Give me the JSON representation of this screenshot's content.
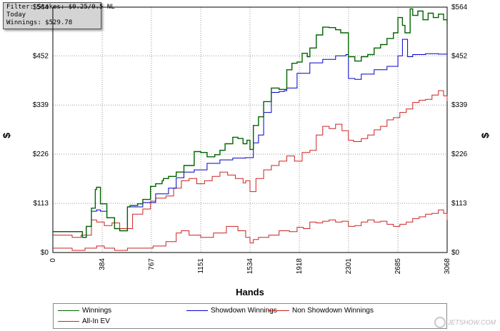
{
  "filter": {
    "line1": "Filter: Stakes: $0.25/0.5 NL",
    "line2": "Today",
    "line3": "Winnings: $529.78"
  },
  "chart_data": {
    "type": "line",
    "xlabel": "Hands",
    "ylabel": "$",
    "ylabel_right": "$",
    "xlim": [
      0,
      3068
    ],
    "ylim": [
      0,
      564
    ],
    "x_ticks": [
      0,
      384,
      767,
      1151,
      1534,
      1918,
      2301,
      2685,
      3068
    ],
    "y_ticks": [
      "$0",
      "$113",
      "$226",
      "$339",
      "$452",
      "$564"
    ],
    "y_tick_values": [
      0,
      113,
      226,
      339,
      452,
      564
    ],
    "grid": true,
    "legend_position": "bottom",
    "series": [
      {
        "name": "Winnings",
        "color": "#006400",
        "x": [
          0,
          200,
          230,
          260,
          300,
          330,
          340,
          370,
          420,
          480,
          520,
          580,
          600,
          660,
          700,
          760,
          800,
          850,
          860,
          900,
          960,
          1020,
          1100,
          1150,
          1200,
          1260,
          1300,
          1340,
          1400,
          1440,
          1480,
          1510,
          1534,
          1560,
          1600,
          1640,
          1700,
          1760,
          1800,
          1820,
          1860,
          1900,
          1940,
          1980,
          2000,
          2050,
          2100,
          2150,
          2200,
          2240,
          2280,
          2300,
          2350,
          2400,
          2450,
          2500,
          2550,
          2600,
          2650,
          2685,
          2720,
          2740,
          2780,
          2800,
          2840,
          2880,
          2920,
          2960,
          3000,
          3040,
          3068
        ],
        "y": [
          48,
          48,
          35,
          60,
          102,
          145,
          150,
          112,
          80,
          55,
          50,
          105,
          108,
          112,
          122,
          152,
          158,
          165,
          170,
          175,
          185,
          200,
          232,
          230,
          220,
          225,
          235,
          250,
          265,
          262,
          250,
          258,
          237,
          292,
          312,
          347,
          378,
          375,
          375,
          420,
          435,
          438,
          458,
          450,
          470,
          500,
          518,
          517,
          512,
          505,
          505,
          450,
          440,
          450,
          455,
          470,
          478,
          492,
          505,
          540,
          522,
          505,
          560,
          545,
          555,
          535,
          550,
          540,
          548,
          535,
          525
        ]
      },
      {
        "name": "Showdown Winnings",
        "color": "#0000cc",
        "x": [
          0,
          200,
          230,
          260,
          300,
          340,
          370,
          420,
          480,
          520,
          580,
          700,
          800,
          900,
          960,
          1020,
          1100,
          1200,
          1300,
          1400,
          1500,
          1534,
          1560,
          1600,
          1640,
          1700,
          1760,
          1800,
          1820,
          1900,
          2000,
          2100,
          2200,
          2280,
          2300,
          2350,
          2400,
          2500,
          2600,
          2685,
          2720,
          2760,
          2800,
          2850,
          2900,
          2950,
          3000,
          3068
        ],
        "y": [
          48,
          48,
          35,
          60,
          95,
          98,
          95,
          80,
          55,
          50,
          105,
          115,
          135,
          148,
          172,
          185,
          190,
          205,
          213,
          217,
          218,
          218,
          252,
          270,
          322,
          368,
          370,
          372,
          378,
          412,
          436,
          444,
          452,
          455,
          400,
          398,
          410,
          420,
          428,
          452,
          490,
          450,
          455,
          455,
          457,
          457,
          456,
          456
        ]
      },
      {
        "name": "Non Showdown Winnings",
        "color": "#cc2222",
        "x": [
          0,
          150,
          250,
          340,
          400,
          480,
          580,
          680,
          780,
          880,
          960,
          1000,
          1060,
          1150,
          1250,
          1350,
          1440,
          1500,
          1534,
          1560,
          1600,
          1680,
          1760,
          1840,
          1900,
          1950,
          2000,
          2050,
          2100,
          2150,
          2200,
          2250,
          2300,
          2350,
          2400,
          2450,
          2500,
          2550,
          2600,
          2650,
          2700,
          2750,
          2800,
          2850,
          2900,
          2950,
          3000,
          3040,
          3068
        ],
        "y": [
          10,
          5,
          10,
          15,
          10,
          5,
          10,
          10,
          15,
          25,
          45,
          50,
          40,
          35,
          45,
          60,
          50,
          35,
          22,
          30,
          35,
          40,
          50,
          48,
          58,
          55,
          70,
          68,
          72,
          75,
          70,
          72,
          60,
          62,
          70,
          75,
          70,
          72,
          65,
          60,
          65,
          70,
          78,
          82,
          88,
          90,
          98,
          90,
          75
        ]
      },
      {
        "name": "All-In EV",
        "color": "#cc2222",
        "x": [
          0,
          150,
          220,
          300,
          340,
          400,
          460,
          520,
          560,
          620,
          700,
          760,
          800,
          880,
          940,
          1000,
          1060,
          1120,
          1180,
          1240,
          1300,
          1360,
          1420,
          1480,
          1500,
          1534,
          1580,
          1640,
          1700,
          1760,
          1820,
          1880,
          1940,
          2000,
          2050,
          2100,
          2150,
          2200,
          2250,
          2300,
          2340,
          2400,
          2450,
          2500,
          2550,
          2600,
          2650,
          2700,
          2750,
          2800,
          2850,
          2900,
          2950,
          3000,
          3040,
          3068
        ],
        "y": [
          40,
          35,
          40,
          75,
          70,
          62,
          68,
          55,
          55,
          88,
          100,
          118,
          125,
          130,
          148,
          165,
          170,
          158,
          165,
          175,
          185,
          178,
          170,
          160,
          165,
          140,
          170,
          190,
          200,
          210,
          222,
          210,
          230,
          235,
          270,
          290,
          285,
          295,
          280,
          258,
          255,
          262,
          270,
          282,
          290,
          305,
          310,
          322,
          330,
          345,
          350,
          352,
          362,
          372,
          360,
          348
        ]
      }
    ]
  },
  "legend": {
    "items": [
      {
        "label": "Winnings",
        "color": "#006400"
      },
      {
        "label": "Showdown Winnings",
        "color": "#0000cc"
      },
      {
        "label": "Non Showdown Winnings",
        "color": "#cc2222"
      },
      {
        "label": "All-In EV",
        "color": "#cc2222"
      }
    ]
  },
  "watermark": "JETSHOW.COM"
}
